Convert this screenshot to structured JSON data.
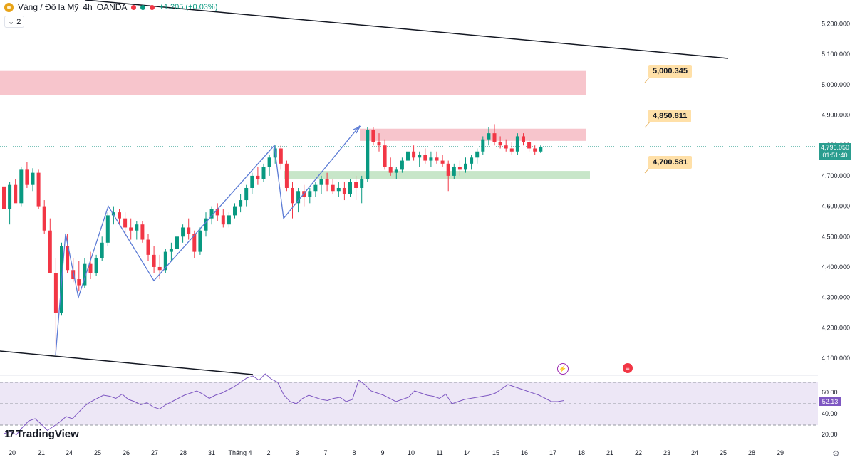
{
  "header": {
    "symbol": "Vàng / Đô la Mỹ",
    "interval": "4h",
    "source": "OANDA",
    "change": "+1.205 (+0.03%)",
    "layers_count": "2"
  },
  "branding": {
    "logo_text": "TradingView"
  },
  "price_levels": {
    "upper": "5,000.345",
    "middle": "4,850.811",
    "lower": "4,700.581"
  },
  "last_price": {
    "price": "4,796.050",
    "countdown": "01:51:40"
  },
  "rsi": {
    "value": "52.13"
  },
  "colors": {
    "up": "#089981",
    "down": "#f23645",
    "resistance_zone": "#f7c5cc",
    "support_zone": "#c8e6c9",
    "rsi_line": "#7e57c2",
    "rsi_band": "#ede7f6",
    "pattern_line": "#5b7bd5",
    "label_bg": "#ffe0a8"
  },
  "chart_data": {
    "type": "candlestick",
    "y_ticks": [
      "5,200.000",
      "5,100.000",
      "5,000.000",
      "4,900.000",
      "4,800.000",
      "4,700.000",
      "4,600.000",
      "4,500.000",
      "4,400.000",
      "4,300.000",
      "4,200.000",
      "4,100.000"
    ],
    "ylim": [
      4070,
      5230
    ],
    "x_ticks": [
      "20",
      "21",
      "24",
      "25",
      "26",
      "27",
      "28",
      "31",
      "Tháng 4",
      "2",
      "3",
      "7",
      "8",
      "9",
      "10",
      "11",
      "14",
      "15",
      "16",
      "17",
      "18",
      "21",
      "22",
      "23",
      "24",
      "25",
      "28",
      "29"
    ],
    "candles": [
      [
        4665,
        4740,
        4580,
        4590
      ],
      [
        4590,
        4680,
        4540,
        4670
      ],
      [
        4670,
        4690,
        4620,
        4610
      ],
      [
        4610,
        4730,
        4600,
        4720
      ],
      [
        4720,
        4745,
        4660,
        4670
      ],
      [
        4670,
        4725,
        4650,
        4710
      ],
      [
        4710,
        4720,
        4590,
        4600
      ],
      [
        4600,
        4620,
        4510,
        4520
      ],
      [
        4520,
        4560,
        4390,
        4380
      ],
      [
        4380,
        4430,
        4110,
        4250
      ],
      [
        4250,
        4480,
        4240,
        4470
      ],
      [
        4470,
        4510,
        4380,
        4390
      ],
      [
        4390,
        4430,
        4350,
        4360
      ],
      [
        4360,
        4420,
        4320,
        4340
      ],
      [
        4340,
        4430,
        4330,
        4410
      ],
      [
        4410,
        4450,
        4360,
        4380
      ],
      [
        4380,
        4440,
        4370,
        4430
      ],
      [
        4430,
        4500,
        4420,
        4480
      ],
      [
        4480,
        4580,
        4470,
        4570
      ],
      [
        4570,
        4600,
        4540,
        4580
      ],
      [
        4580,
        4590,
        4540,
        4560
      ],
      [
        4560,
        4580,
        4500,
        4530
      ],
      [
        4530,
        4560,
        4490,
        4520
      ],
      [
        4520,
        4550,
        4490,
        4540
      ],
      [
        4540,
        4550,
        4480,
        4490
      ],
      [
        4490,
        4510,
        4420,
        4440
      ],
      [
        4440,
        4470,
        4380,
        4400
      ],
      [
        4400,
        4440,
        4360,
        4390
      ],
      [
        4390,
        4460,
        4380,
        4450
      ],
      [
        4450,
        4480,
        4420,
        4460
      ],
      [
        4460,
        4510,
        4440,
        4500
      ],
      [
        4500,
        4540,
        4480,
        4530
      ],
      [
        4530,
        4560,
        4490,
        4510
      ],
      [
        4510,
        4520,
        4430,
        4450
      ],
      [
        4450,
        4530,
        4440,
        4520
      ],
      [
        4520,
        4580,
        4500,
        4560
      ],
      [
        4560,
        4600,
        4540,
        4590
      ],
      [
        4590,
        4610,
        4550,
        4570
      ],
      [
        4570,
        4590,
        4530,
        4540
      ],
      [
        4540,
        4580,
        4530,
        4570
      ],
      [
        4570,
        4610,
        4560,
        4600
      ],
      [
        4600,
        4640,
        4580,
        4620
      ],
      [
        4620,
        4670,
        4600,
        4660
      ],
      [
        4660,
        4710,
        4640,
        4700
      ],
      [
        4700,
        4730,
        4670,
        4690
      ],
      [
        4690,
        4740,
        4680,
        4730
      ],
      [
        4730,
        4770,
        4700,
        4760
      ],
      [
        4760,
        4800,
        4740,
        4790
      ],
      [
        4790,
        4800,
        4720,
        4740
      ],
      [
        4740,
        4750,
        4650,
        4660
      ],
      [
        4660,
        4680,
        4560,
        4610
      ],
      [
        4610,
        4660,
        4580,
        4650
      ],
      [
        4650,
        4670,
        4600,
        4630
      ],
      [
        4630,
        4660,
        4610,
        4650
      ],
      [
        4650,
        4680,
        4630,
        4670
      ],
      [
        4670,
        4700,
        4640,
        4690
      ],
      [
        4690,
        4710,
        4650,
        4670
      ],
      [
        4670,
        4690,
        4640,
        4650
      ],
      [
        4650,
        4680,
        4630,
        4660
      ],
      [
        4660,
        4680,
        4620,
        4640
      ],
      [
        4640,
        4690,
        4630,
        4680
      ],
      [
        4680,
        4700,
        4620,
        4660
      ],
      [
        4660,
        4700,
        4610,
        4690
      ],
      [
        4690,
        4860,
        4680,
        4850
      ],
      [
        4850,
        4860,
        4800,
        4810
      ],
      [
        4810,
        4840,
        4780,
        4800
      ],
      [
        4800,
        4820,
        4720,
        4730
      ],
      [
        4730,
        4760,
        4700,
        4710
      ],
      [
        4710,
        4730,
        4690,
        4720
      ],
      [
        4720,
        4760,
        4710,
        4750
      ],
      [
        4750,
        4790,
        4730,
        4780
      ],
      [
        4780,
        4800,
        4750,
        4760
      ],
      [
        4760,
        4780,
        4730,
        4770
      ],
      [
        4770,
        4790,
        4740,
        4750
      ],
      [
        4750,
        4780,
        4730,
        4760
      ],
      [
        4760,
        4780,
        4740,
        4750
      ],
      [
        4750,
        4770,
        4730,
        4740
      ],
      [
        4740,
        4750,
        4650,
        4700
      ],
      [
        4700,
        4740,
        4690,
        4730
      ],
      [
        4730,
        4750,
        4700,
        4720
      ],
      [
        4720,
        4760,
        4710,
        4740
      ],
      [
        4740,
        4770,
        4720,
        4760
      ],
      [
        4760,
        4790,
        4740,
        4780
      ],
      [
        4780,
        4830,
        4770,
        4820
      ],
      [
        4820,
        4860,
        4800,
        4840
      ],
      [
        4840,
        4870,
        4800,
        4810
      ],
      [
        4810,
        4830,
        4790,
        4800
      ],
      [
        4800,
        4820,
        4780,
        4790
      ],
      [
        4790,
        4810,
        4770,
        4780
      ],
      [
        4780,
        4840,
        4770,
        4830
      ],
      [
        4830,
        4840,
        4800,
        4810
      ],
      [
        4810,
        4820,
        4780,
        4790
      ],
      [
        4790,
        4800,
        4770,
        4780
      ],
      [
        4780,
        4800,
        4775,
        4796
      ]
    ],
    "resistance_zones": [
      [
        4965,
        5045
      ],
      [
        4815,
        4855
      ]
    ],
    "support_zone": [
      4690,
      4716
    ],
    "rsi_ticks": [
      "60.00",
      "40.00",
      "20.00"
    ],
    "rsi_values": [
      22,
      24,
      21,
      28,
      34,
      36,
      31,
      25,
      29,
      33,
      38,
      36,
      42,
      48,
      52,
      55,
      58,
      57,
      55,
      59,
      54,
      52,
      49,
      51,
      47,
      45,
      49,
      52,
      55,
      58,
      60,
      62,
      59,
      55,
      58,
      60,
      63,
      66,
      70,
      74,
      76,
      72,
      78,
      73,
      70,
      58,
      52,
      50,
      55,
      58,
      56,
      54,
      53,
      55,
      56,
      52,
      54,
      72,
      68,
      62,
      60,
      58,
      55,
      52,
      54,
      56,
      62,
      60,
      58,
      57,
      55,
      59,
      50,
      52,
      54,
      55,
      56,
      57,
      58,
      60,
      64,
      68,
      66,
      64,
      62,
      60,
      58,
      55,
      52,
      52,
      53
    ]
  }
}
